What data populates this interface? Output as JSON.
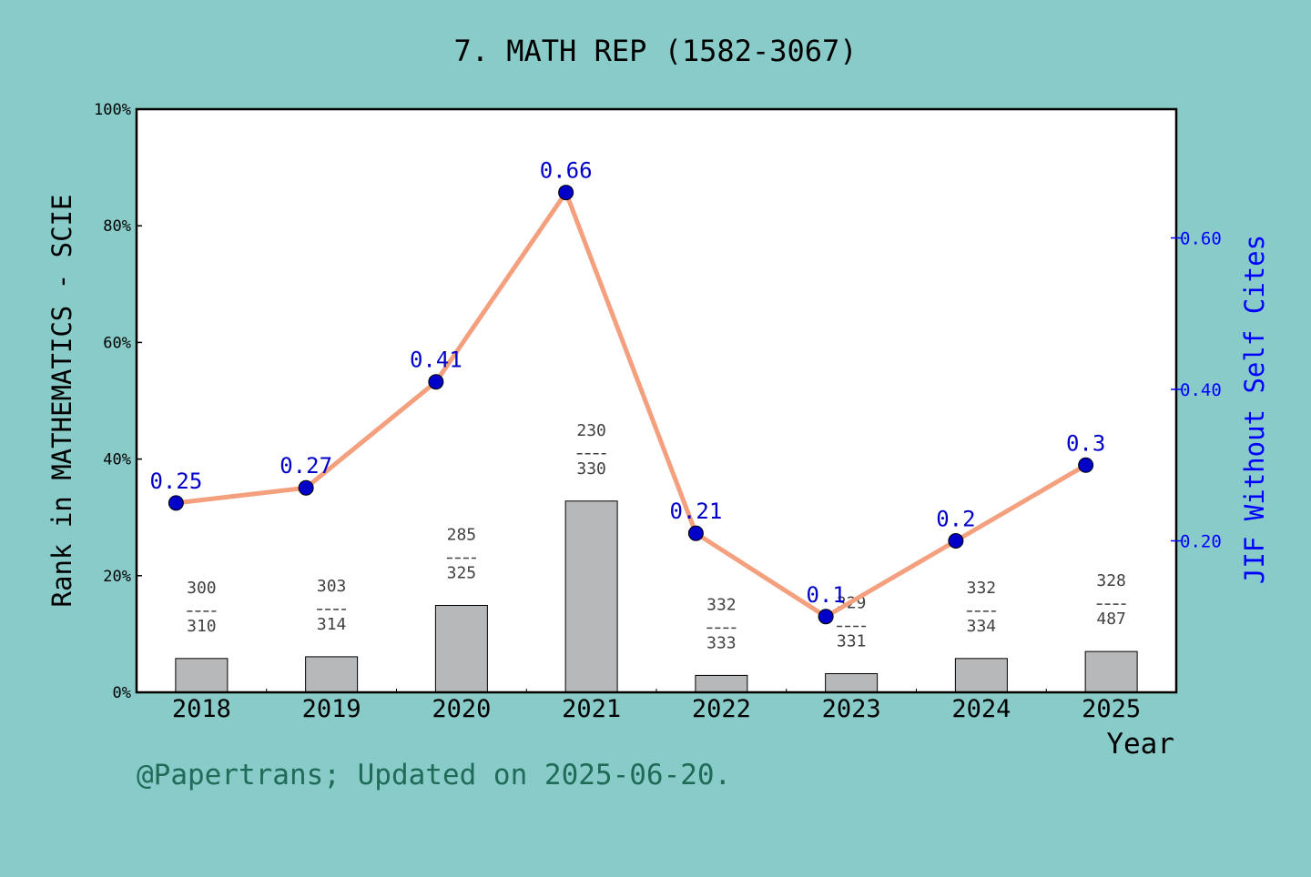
{
  "chart_data": {
    "type": "bar",
    "title": "7. MATH REP (1582-3067)",
    "xlabel": "Year",
    "ylabel": "Rank in MATHEMATICS - SCIE",
    "ylabel_right": "JIF Without Self Cites",
    "categories": [
      "2018",
      "2019",
      "2020",
      "2021",
      "2022",
      "2023",
      "2024",
      "2025"
    ],
    "ylim": [
      0,
      100
    ],
    "yticks": [
      "0%",
      "20%",
      "40%",
      "60%",
      "80%",
      "100%"
    ],
    "y2lim": [
      0,
      0.77
    ],
    "y2ticks": [
      "0.20",
      "0.40",
      "0.60"
    ],
    "series": [
      {
        "type": "bar",
        "values": [
          5.8,
          6.1,
          14.9,
          32.8,
          2.9,
          3.2,
          5.8,
          7.0
        ],
        "rank_labels": [
          {
            "top": "300",
            "bottom": "310"
          },
          {
            "top": "303",
            "bottom": "314"
          },
          {
            "top": "285",
            "bottom": "325"
          },
          {
            "top": "230",
            "bottom": "330"
          },
          {
            "top": "332",
            "bottom": "333"
          },
          {
            "top": "329",
            "bottom": "331"
          },
          {
            "top": "332",
            "bottom": "334"
          },
          {
            "top": "328",
            "bottom": "487"
          }
        ]
      },
      {
        "type": "line",
        "axis": "right",
        "values": [
          0.25,
          0.27,
          0.41,
          0.66,
          0.21,
          0.1,
          0.2,
          0.3
        ],
        "labels": [
          "0.25",
          "0.27",
          "0.41",
          "0.66",
          "0.21",
          "0.1",
          "0.2",
          "0.3"
        ]
      }
    ],
    "colors": {
      "bar": "#b7b8ba",
      "line": "#f4a07e",
      "marker": "#0000c8",
      "right_axis": "#0000ff",
      "rank_label": "#404040"
    },
    "grid": false
  },
  "footer": "@Papertrans; Updated on 2025-06-20."
}
